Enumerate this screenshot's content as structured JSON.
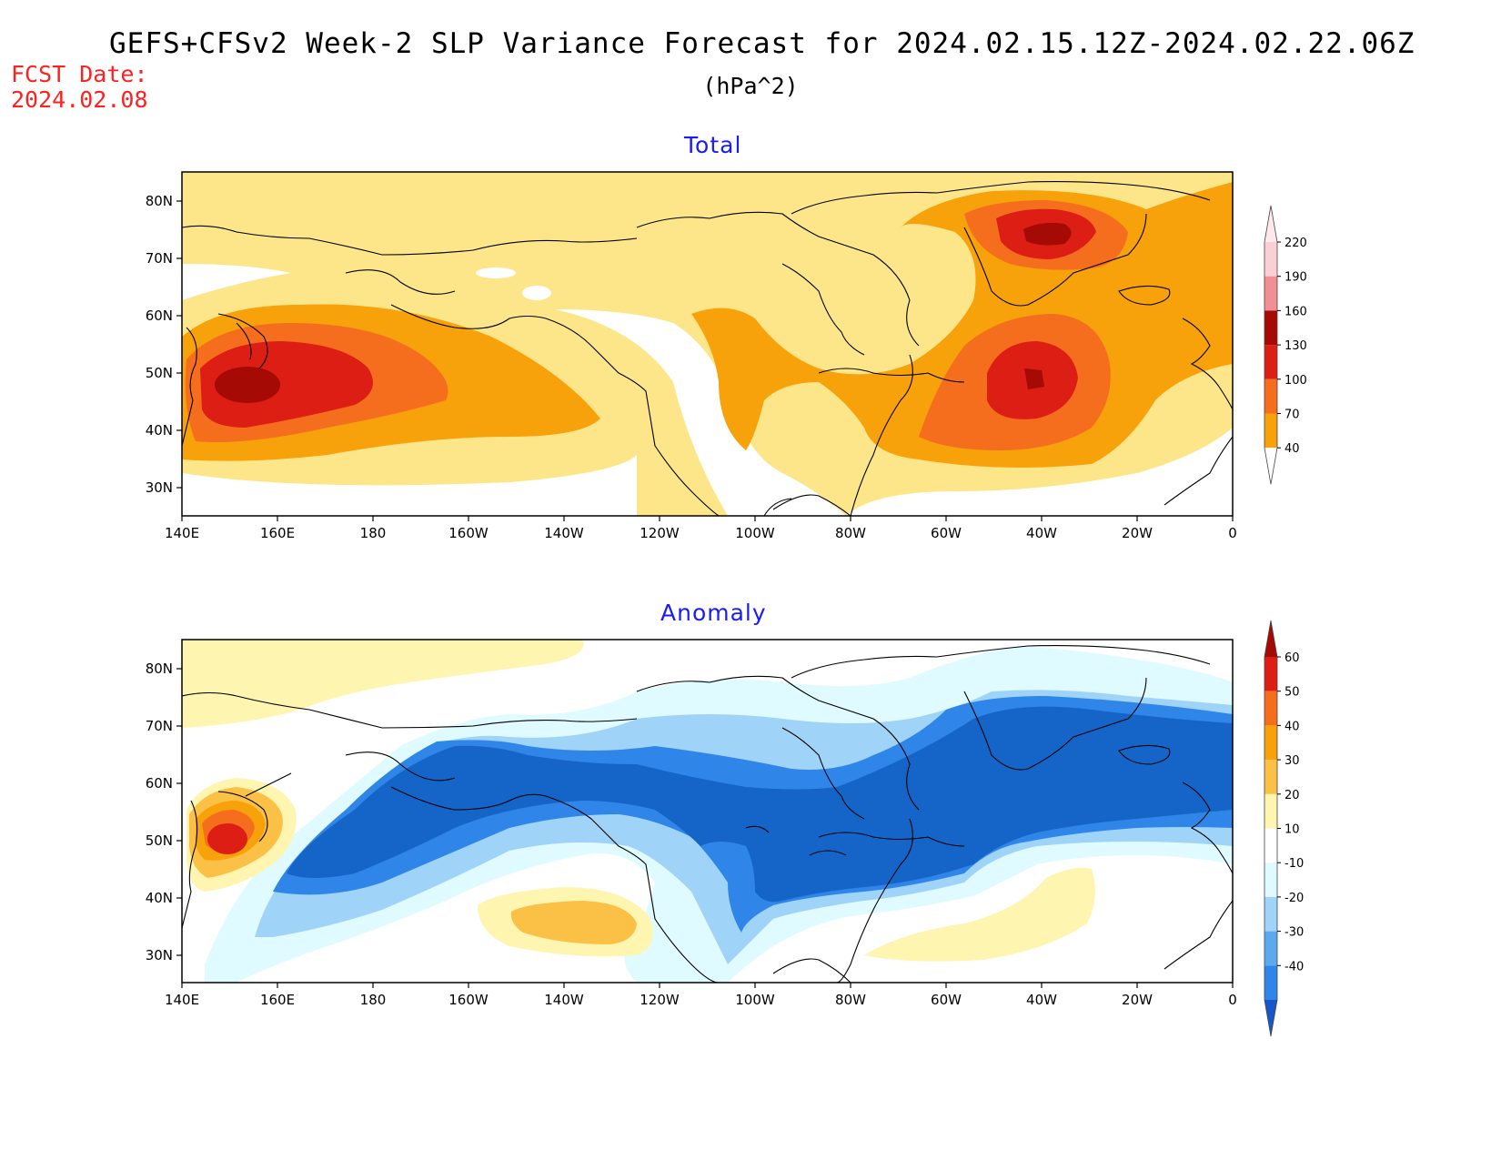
{
  "header": {
    "title": "GEFS+CFSv2 Week-2 SLP Variance Forecast for 2024.02.15.12Z-2024.02.22.06Z",
    "units": "(hPa^2)",
    "fcst_label": "FCST Date:",
    "fcst_date": "2024.02.08"
  },
  "axes": {
    "lon_labels": [
      "140E",
      "160E",
      "180",
      "160W",
      "140W",
      "120W",
      "100W",
      "80W",
      "60W",
      "40W",
      "20W",
      "0"
    ],
    "lat_labels": [
      "80N",
      "70N",
      "60N",
      "50N",
      "40N",
      "30N"
    ]
  },
  "panels": [
    {
      "title": "Total",
      "colorbar": {
        "labels": [
          "220",
          "190",
          "160",
          "130",
          "100",
          "70",
          "40"
        ],
        "colors": [
          "#fad0d6",
          "#f08f94",
          "#a50a05",
          "#dc1e15",
          "#f56e1e",
          "#f7a20a",
          "#fde68a"
        ]
      }
    },
    {
      "title": "Anomaly",
      "colorbar": {
        "labels": [
          "60",
          "50",
          "40",
          "30",
          "20",
          "10",
          "-10",
          "-20",
          "-30",
          "-40"
        ],
        "colors": [
          "#a50a05",
          "#dc1e15",
          "#f56e1e",
          "#f7a20a",
          "#fbc146",
          "#fdf5b0",
          "#ffffff",
          "#e0fbff",
          "#9fd3f8",
          "#5ea8ee",
          "#2f86e8",
          "#1658c8"
        ]
      }
    }
  ],
  "colors": {
    "total_levels": [
      "#fde68a",
      "#f7a20a",
      "#f56e1e",
      "#dc1e15",
      "#a50a05"
    ],
    "anomaly_pos": [
      "#fdf5b0",
      "#fbc146",
      "#f7a20a",
      "#f56e1e",
      "#dc1e15"
    ],
    "anomaly_neg": [
      "#e0fbff",
      "#9fd3f8",
      "#2f86e8",
      "#1565c8"
    ]
  }
}
